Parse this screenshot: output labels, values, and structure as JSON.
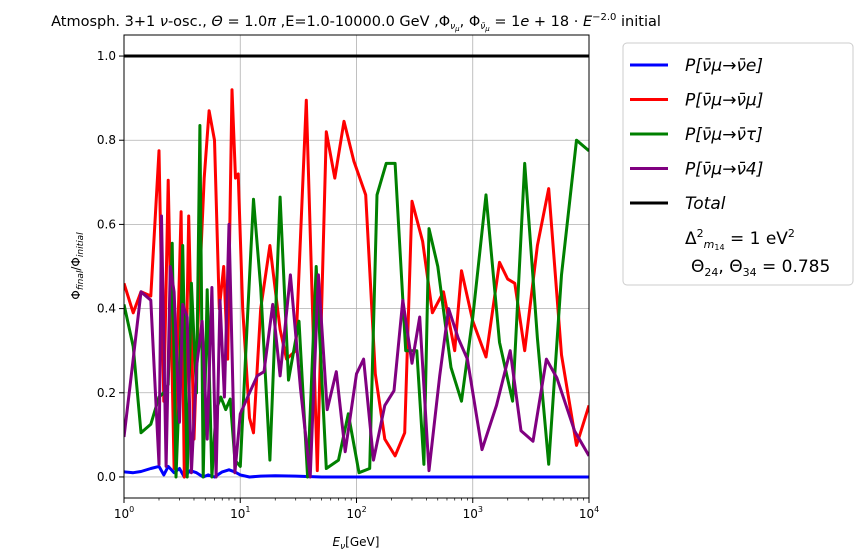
{
  "chart_data": {
    "type": "line",
    "title": "Atmosph. 3+1 ν-osc., Θ = 1.0π ,E=1.0-10000.0 GeV  ,Φ_νμ, Φ_ν̄μ = 1e + 18 · E^−2.0 initial",
    "xlabel": "E_ν[GeV]",
    "ylabel": "Φ_final/Φ_initial",
    "xscale": "log",
    "xlim": [
      1,
      10000
    ],
    "ylim": [
      -0.05,
      1.05
    ],
    "grid": true,
    "legend_position": "outside-right",
    "x_ticks": [
      {
        "value": 1,
        "base": "10",
        "exp": "0"
      },
      {
        "value": 10,
        "base": "10",
        "exp": "1"
      },
      {
        "value": 100,
        "base": "10",
        "exp": "2"
      },
      {
        "value": 1000,
        "base": "10",
        "exp": "3"
      },
      {
        "value": 10000,
        "base": "10",
        "exp": "4"
      }
    ],
    "y_ticks": [
      "0.0",
      "0.2",
      "0.4",
      "0.6",
      "0.8",
      "1.0"
    ],
    "legend_note_line1": "Δ²_m14 = 1 eV²",
    "legend_note_line2": "Θ24, Θ34 = 0.785",
    "series": [
      {
        "name": "P[ν̄μ→ν̄e]",
        "color": "#0000ff",
        "points": [
          [
            1,
            0.012
          ],
          [
            1.2,
            0.01
          ],
          [
            1.4,
            0.013
          ],
          [
            1.7,
            0.02
          ],
          [
            2,
            0.025
          ],
          [
            2.2,
            0.005
          ],
          [
            2.4,
            0.025
          ],
          [
            2.7,
            0.01
          ],
          [
            3,
            0.02
          ],
          [
            3.3,
            0.0
          ],
          [
            3.7,
            0.015
          ],
          [
            4.2,
            0.01
          ],
          [
            4.8,
            0.0
          ],
          [
            5.3,
            0.005
          ],
          [
            6,
            0.0
          ],
          [
            7,
            0.012
          ],
          [
            8,
            0.017
          ],
          [
            9,
            0.012
          ],
          [
            10,
            0.005
          ],
          [
            12,
            0.0
          ],
          [
            15,
            0.002
          ],
          [
            20,
            0.003
          ],
          [
            30,
            0.002
          ],
          [
            50,
            0.0
          ],
          [
            100,
            0.0
          ],
          [
            1000,
            0.0
          ],
          [
            10000,
            0.0
          ]
        ]
      },
      {
        "name": "P[ν̄μ→ν̄μ]",
        "color": "#ff0000",
        "points": [
          [
            1,
            0.46
          ],
          [
            1.2,
            0.39
          ],
          [
            1.4,
            0.44
          ],
          [
            1.7,
            0.43
          ],
          [
            2,
            0.775
          ],
          [
            2.2,
            0.18
          ],
          [
            2.4,
            0.705
          ],
          [
            2.7,
            0.02
          ],
          [
            3.1,
            0.63
          ],
          [
            3.3,
            0.0
          ],
          [
            3.6,
            0.62
          ],
          [
            4,
            0.09
          ],
          [
            4.4,
            0.42
          ],
          [
            4.9,
            0.71
          ],
          [
            5.4,
            0.87
          ],
          [
            6,
            0.8
          ],
          [
            6.6,
            0.4
          ],
          [
            7.2,
            0.5
          ],
          [
            7.8,
            0.28
          ],
          [
            8.5,
            0.92
          ],
          [
            9.1,
            0.71
          ],
          [
            9.6,
            0.72
          ],
          [
            10.5,
            0.4
          ],
          [
            12,
            0.14
          ],
          [
            13,
            0.105
          ],
          [
            15,
            0.4
          ],
          [
            18,
            0.55
          ],
          [
            22,
            0.35
          ],
          [
            25,
            0.28
          ],
          [
            30,
            0.3
          ],
          [
            37,
            0.895
          ],
          [
            46,
            0.015
          ],
          [
            55,
            0.82
          ],
          [
            65,
            0.71
          ],
          [
            78,
            0.845
          ],
          [
            95,
            0.75
          ],
          [
            120,
            0.67
          ],
          [
            145,
            0.245
          ],
          [
            175,
            0.09
          ],
          [
            215,
            0.05
          ],
          [
            260,
            0.105
          ],
          [
            300,
            0.655
          ],
          [
            370,
            0.56
          ],
          [
            450,
            0.39
          ],
          [
            560,
            0.44
          ],
          [
            700,
            0.3
          ],
          [
            800,
            0.49
          ],
          [
            1000,
            0.37
          ],
          [
            1300,
            0.285
          ],
          [
            1700,
            0.51
          ],
          [
            2000,
            0.47
          ],
          [
            2300,
            0.46
          ],
          [
            2800,
            0.3
          ],
          [
            3600,
            0.55
          ],
          [
            4500,
            0.685
          ],
          [
            5800,
            0.29
          ],
          [
            7800,
            0.075
          ],
          [
            10000,
            0.17
          ]
        ]
      },
      {
        "name": "P[ν̄μ→ν̄τ]",
        "color": "#008000",
        "points": [
          [
            1,
            0.41
          ],
          [
            1.2,
            0.31
          ],
          [
            1.4,
            0.105
          ],
          [
            1.7,
            0.125
          ],
          [
            2,
            0.19
          ],
          [
            2.2,
            0.2
          ],
          [
            2.4,
            0.22
          ],
          [
            2.6,
            0.555
          ],
          [
            2.8,
            0.0
          ],
          [
            3,
            0.22
          ],
          [
            3.2,
            0.55
          ],
          [
            3.5,
            0.0
          ],
          [
            3.8,
            0.46
          ],
          [
            4.2,
            0.2
          ],
          [
            4.5,
            0.835
          ],
          [
            4.8,
            0.0
          ],
          [
            5.2,
            0.445
          ],
          [
            5.7,
            0.0
          ],
          [
            6.2,
            0.16
          ],
          [
            6.8,
            0.19
          ],
          [
            7.5,
            0.16
          ],
          [
            8.2,
            0.185
          ],
          [
            9,
            0.04
          ],
          [
            10,
            0.025
          ],
          [
            11.5,
            0.37
          ],
          [
            13,
            0.66
          ],
          [
            15,
            0.45
          ],
          [
            18,
            0.04
          ],
          [
            22,
            0.665
          ],
          [
            26,
            0.23
          ],
          [
            32,
            0.37
          ],
          [
            38,
            0.0
          ],
          [
            45,
            0.5
          ],
          [
            55,
            0.02
          ],
          [
            70,
            0.04
          ],
          [
            85,
            0.15
          ],
          [
            105,
            0.01
          ],
          [
            130,
            0.02
          ],
          [
            150,
            0.67
          ],
          [
            180,
            0.745
          ],
          [
            215,
            0.745
          ],
          [
            265,
            0.3
          ],
          [
            330,
            0.3
          ],
          [
            380,
            0.03
          ],
          [
            420,
            0.59
          ],
          [
            500,
            0.5
          ],
          [
            650,
            0.26
          ],
          [
            800,
            0.18
          ],
          [
            1000,
            0.38
          ],
          [
            1300,
            0.67
          ],
          [
            1700,
            0.32
          ],
          [
            2200,
            0.18
          ],
          [
            2800,
            0.745
          ],
          [
            3600,
            0.33
          ],
          [
            4500,
            0.03
          ],
          [
            5800,
            0.48
          ],
          [
            7800,
            0.8
          ],
          [
            10000,
            0.775
          ]
        ]
      },
      {
        "name": "P[ν̄μ→ν̄4]",
        "color": "#800080",
        "points": [
          [
            1,
            0.095
          ],
          [
            1.2,
            0.28
          ],
          [
            1.4,
            0.44
          ],
          [
            1.7,
            0.42
          ],
          [
            2,
            0.03
          ],
          [
            2.1,
            0.62
          ],
          [
            2.3,
            0.025
          ],
          [
            2.5,
            0.5
          ],
          [
            2.7,
            0.44
          ],
          [
            3,
            0.13
          ],
          [
            3.2,
            0.41
          ],
          [
            3.5,
            0.38
          ],
          [
            3.8,
            0.01
          ],
          [
            4.2,
            0.26
          ],
          [
            4.7,
            0.37
          ],
          [
            5.2,
            0.09
          ],
          [
            5.7,
            0.45
          ],
          [
            6.2,
            0.0
          ],
          [
            6.7,
            0.42
          ],
          [
            7.3,
            0.19
          ],
          [
            8,
            0.6
          ],
          [
            9,
            0.01
          ],
          [
            10,
            0.15
          ],
          [
            12,
            0.2
          ],
          [
            14,
            0.24
          ],
          [
            16,
            0.25
          ],
          [
            19,
            0.41
          ],
          [
            22,
            0.24
          ],
          [
            27,
            0.48
          ],
          [
            33,
            0.21
          ],
          [
            40,
            0.0
          ],
          [
            47,
            0.48
          ],
          [
            56,
            0.16
          ],
          [
            67,
            0.25
          ],
          [
            80,
            0.06
          ],
          [
            100,
            0.245
          ],
          [
            115,
            0.28
          ],
          [
            140,
            0.04
          ],
          [
            175,
            0.17
          ],
          [
            210,
            0.205
          ],
          [
            250,
            0.42
          ],
          [
            300,
            0.27
          ],
          [
            350,
            0.38
          ],
          [
            420,
            0.015
          ],
          [
            520,
            0.24
          ],
          [
            620,
            0.4
          ],
          [
            750,
            0.33
          ],
          [
            900,
            0.28
          ],
          [
            1200,
            0.065
          ],
          [
            1600,
            0.17
          ],
          [
            2100,
            0.3
          ],
          [
            2600,
            0.11
          ],
          [
            3300,
            0.085
          ],
          [
            4300,
            0.28
          ],
          [
            5300,
            0.235
          ],
          [
            7500,
            0.11
          ],
          [
            10000,
            0.05
          ]
        ]
      },
      {
        "name": "Total",
        "color": "#000000",
        "points": [
          [
            1,
            1.0
          ],
          [
            10000,
            1.0
          ]
        ]
      }
    ]
  }
}
